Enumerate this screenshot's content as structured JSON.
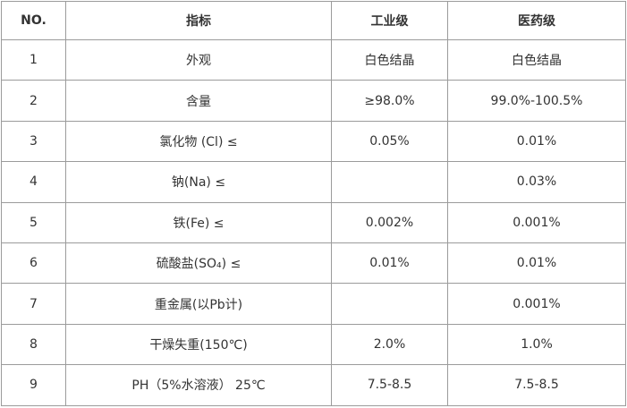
{
  "table": {
    "headers": {
      "no": "NO.",
      "indicator": "指标",
      "industrial": "工业级",
      "pharma": "医药级"
    },
    "rows": [
      {
        "no": "1",
        "indicator": "外观",
        "industrial": "白色结晶",
        "pharma": "白色结晶"
      },
      {
        "no": "2",
        "indicator": "含量",
        "industrial": "≥98.0%",
        "pharma": "99.0%-100.5%"
      },
      {
        "no": "3",
        "indicator": "氯化物 (Cl) ≤",
        "industrial": "0.05%",
        "pharma": "0.01%"
      },
      {
        "no": "4",
        "indicator": "钠(Na) ≤",
        "industrial": "",
        "pharma": "0.03%"
      },
      {
        "no": "5",
        "indicator": "铁(Fe) ≤",
        "industrial": "0.002%",
        "pharma": "0.001%"
      },
      {
        "no": "6",
        "indicator": "硫酸盐(SO₄) ≤",
        "industrial": "0.01%",
        "pharma": "0.01%"
      },
      {
        "no": "7",
        "indicator": "重金属(以Pb计)",
        "industrial": "",
        "pharma": "0.001%"
      },
      {
        "no": "8",
        "indicator": "干燥失重(150℃)",
        "industrial": "2.0%",
        "pharma": "1.0%"
      },
      {
        "no": "9",
        "indicator": "PH（5%水溶液） 25℃",
        "industrial": "7.5-8.5",
        "pharma": "7.5-8.5"
      }
    ],
    "colors": {
      "border": "#9b9b9b",
      "text": "#333333"
    }
  }
}
